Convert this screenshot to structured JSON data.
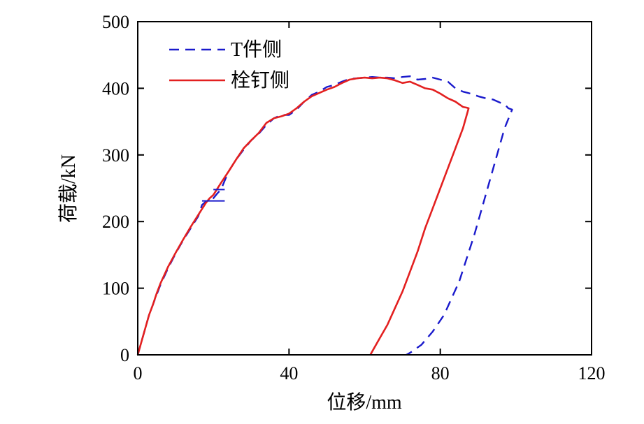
{
  "chart_data": {
    "type": "line",
    "title": "",
    "xlabel": "位移/mm",
    "ylabel": "荷载/kN",
    "xlim": [
      0,
      120
    ],
    "ylim": [
      0,
      500
    ],
    "x_ticks": [
      0,
      40,
      80,
      120
    ],
    "y_ticks": [
      0,
      100,
      200,
      300,
      400,
      500
    ],
    "x_tick_labels": [
      "0",
      "40",
      "80",
      "120"
    ],
    "y_tick_labels": [
      "0",
      "100",
      "200",
      "300",
      "400",
      "500"
    ],
    "legend_position": "top-left",
    "series": [
      {
        "name": "T件侧",
        "color": "#1a1acc",
        "style": "dashed",
        "points": [
          [
            0,
            0
          ],
          [
            1,
            20
          ],
          [
            2,
            40
          ],
          [
            3,
            60
          ],
          [
            4,
            75
          ],
          [
            5,
            90
          ],
          [
            6,
            105
          ],
          [
            8,
            130
          ],
          [
            10,
            152
          ],
          [
            12,
            172
          ],
          [
            14,
            190
          ],
          [
            16,
            208
          ],
          [
            17,
            225
          ],
          [
            18,
            230
          ],
          [
            20,
            235
          ],
          [
            21,
            242
          ],
          [
            22,
            248
          ],
          [
            24,
            275
          ],
          [
            26,
            293
          ],
          [
            28,
            308
          ],
          [
            30,
            322
          ],
          [
            32,
            332
          ],
          [
            34,
            345
          ],
          [
            36,
            355
          ],
          [
            38,
            360
          ],
          [
            40,
            360
          ],
          [
            42,
            368
          ],
          [
            44,
            380
          ],
          [
            46,
            390
          ],
          [
            48,
            395
          ],
          [
            50,
            402
          ],
          [
            52,
            405
          ],
          [
            54,
            410
          ],
          [
            56,
            414
          ],
          [
            58,
            415
          ],
          [
            60,
            416
          ],
          [
            62,
            417
          ],
          [
            64,
            416
          ],
          [
            66,
            416
          ],
          [
            68,
            415
          ],
          [
            70,
            417
          ],
          [
            72,
            418
          ],
          [
            74,
            413
          ],
          [
            76,
            414
          ],
          [
            78,
            416
          ],
          [
            80,
            413
          ],
          [
            82,
            410
          ],
          [
            84,
            400
          ],
          [
            86,
            395
          ],
          [
            88,
            392
          ],
          [
            90,
            388
          ],
          [
            92,
            385
          ],
          [
            94,
            383
          ],
          [
            96,
            378
          ],
          [
            97,
            376
          ],
          [
            98,
            370
          ],
          [
            99,
            368
          ],
          [
            97,
            340
          ],
          [
            95,
            300
          ],
          [
            93,
            260
          ],
          [
            91,
            220
          ],
          [
            89,
            180
          ],
          [
            87,
            145
          ],
          [
            85,
            110
          ],
          [
            83,
            85
          ],
          [
            81,
            60
          ],
          [
            78,
            35
          ],
          [
            75,
            15
          ],
          [
            72,
            3
          ],
          [
            71,
            0
          ]
        ]
      },
      {
        "name": "栓钉侧",
        "color": "#e32020",
        "style": "solid",
        "points": [
          [
            0,
            0
          ],
          [
            1,
            20
          ],
          [
            2,
            40
          ],
          [
            3,
            60
          ],
          [
            4,
            75
          ],
          [
            5,
            92
          ],
          [
            6,
            107
          ],
          [
            8,
            132
          ],
          [
            10,
            153
          ],
          [
            12,
            173
          ],
          [
            14,
            192
          ],
          [
            16,
            210
          ],
          [
            18,
            228
          ],
          [
            19,
            235
          ],
          [
            20,
            240
          ],
          [
            22,
            258
          ],
          [
            24,
            275
          ],
          [
            26,
            293
          ],
          [
            28,
            310
          ],
          [
            30,
            322
          ],
          [
            32,
            333
          ],
          [
            34,
            348
          ],
          [
            36,
            355
          ],
          [
            38,
            358
          ],
          [
            40,
            362
          ],
          [
            42,
            370
          ],
          [
            44,
            380
          ],
          [
            46,
            388
          ],
          [
            48,
            393
          ],
          [
            50,
            398
          ],
          [
            52,
            402
          ],
          [
            54,
            408
          ],
          [
            56,
            413
          ],
          [
            58,
            415
          ],
          [
            60,
            416
          ],
          [
            62,
            415
          ],
          [
            64,
            416
          ],
          [
            66,
            415
          ],
          [
            68,
            412
          ],
          [
            70,
            408
          ],
          [
            72,
            410
          ],
          [
            74,
            405
          ],
          [
            76,
            400
          ],
          [
            78,
            398
          ],
          [
            80,
            392
          ],
          [
            82,
            385
          ],
          [
            84,
            380
          ],
          [
            85,
            376
          ],
          [
            86,
            372
          ],
          [
            87,
            371
          ],
          [
            87.5,
            370
          ],
          [
            86,
            340
          ],
          [
            84,
            310
          ],
          [
            82,
            280
          ],
          [
            80,
            250
          ],
          [
            78,
            220
          ],
          [
            76,
            190
          ],
          [
            74,
            155
          ],
          [
            72,
            125
          ],
          [
            70,
            95
          ],
          [
            68,
            70
          ],
          [
            66,
            45
          ],
          [
            64,
            25
          ],
          [
            62,
            5
          ],
          [
            61.5,
            0
          ]
        ]
      }
    ]
  }
}
